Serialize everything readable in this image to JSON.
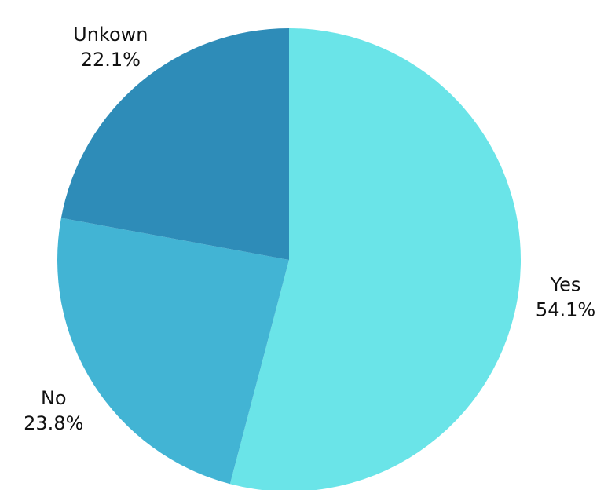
{
  "chart_data": {
    "type": "pie",
    "slices": [
      {
        "label": "Yes",
        "value": 54.1,
        "value_text": "54.1%",
        "color": "#6AE4E8"
      },
      {
        "label": "No",
        "value": 23.8,
        "value_text": "23.8%",
        "color": "#42B4D4"
      },
      {
        "label": "Unkown",
        "value": 22.1,
        "value_text": "22.1%",
        "color": "#2E8CB8"
      }
    ],
    "start": "12 o'clock",
    "direction": "clockwise",
    "legend": "none",
    "labels": "outside"
  }
}
